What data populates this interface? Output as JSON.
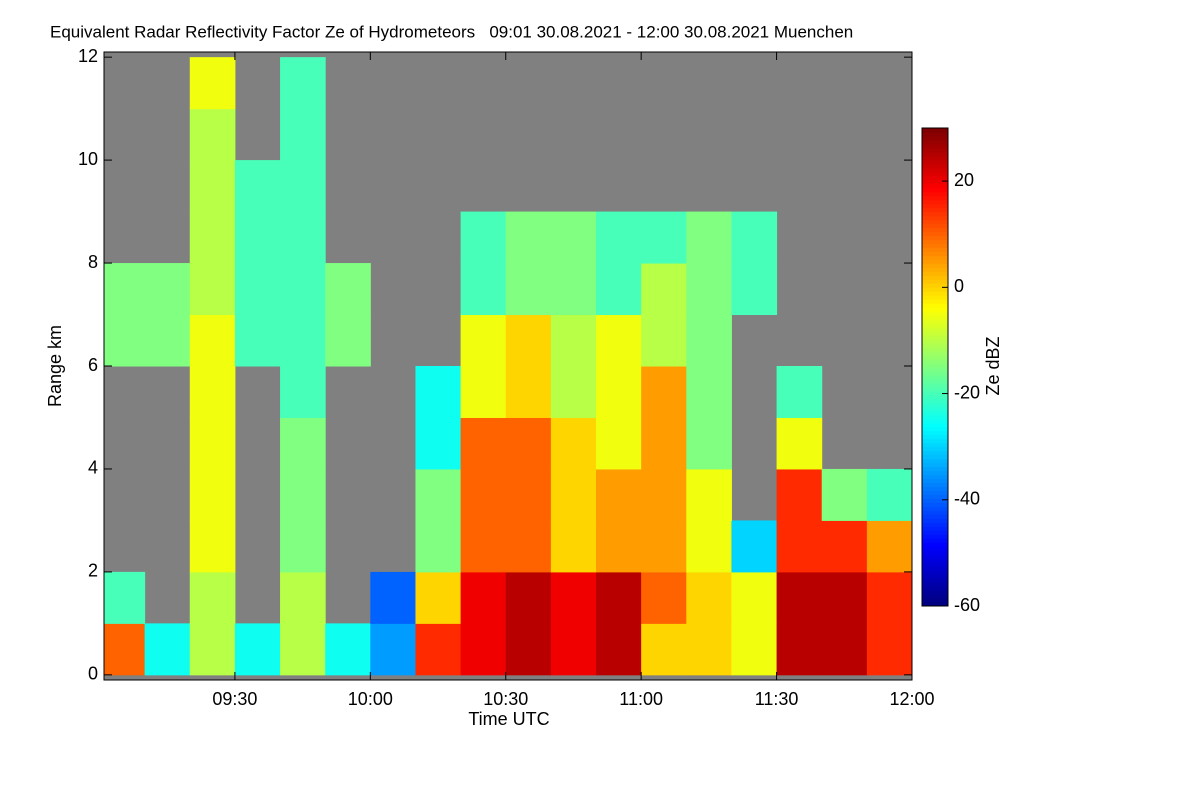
{
  "chart_data": {
    "type": "heatmap",
    "title": "Equivalent Radar Reflectivity Factor Ze of Hydrometeors   09:01 30.08.2021 - 12:00 30.08.2021 Muenchen",
    "xlabel": "Time UTC",
    "ylabel": "Range km",
    "colorbar_label": "Ze dBZ",
    "xlim": [
      "09:01",
      "12:00"
    ],
    "xticks": [
      "09:30",
      "10:00",
      "10:30",
      "11:00",
      "11:30",
      "12:00"
    ],
    "ylim": [
      -0.1,
      12.1
    ],
    "yticks": [
      0,
      2,
      4,
      6,
      8,
      10,
      12
    ],
    "zlim": [
      -60,
      30
    ],
    "zticks": [
      -60,
      -40,
      -20,
      0,
      20
    ],
    "background": "#808080",
    "colormap": "jet",
    "x_bins": [
      "09:01",
      "09:10",
      "09:20",
      "09:30",
      "09:40",
      "09:50",
      "10:00",
      "10:10",
      "10:20",
      "10:30",
      "10:40",
      "10:50",
      "11:00",
      "11:10",
      "11:20",
      "11:30",
      "11:40",
      "11:50",
      "12:00"
    ],
    "y_bins": [
      0,
      1,
      2,
      3,
      4,
      5,
      6,
      7,
      8,
      9,
      10,
      11,
      12
    ],
    "values": [
      [
        10,
        -25,
        -10,
        -25,
        -10,
        -25,
        -35,
        15,
        20,
        25,
        20,
        25,
        0,
        0,
        -5,
        25,
        25,
        15
      ],
      [
        -20,
        null,
        -10,
        null,
        -10,
        null,
        -40,
        0,
        20,
        25,
        20,
        25,
        10,
        0,
        -5,
        25,
        25,
        15
      ],
      [
        null,
        null,
        -5,
        null,
        -15,
        null,
        null,
        -15,
        10,
        10,
        0,
        5,
        5,
        -5,
        -30,
        15,
        15,
        5
      ],
      [
        null,
        null,
        -5,
        null,
        -15,
        null,
        null,
        -15,
        10,
        10,
        0,
        5,
        5,
        -5,
        null,
        15,
        -15,
        -20
      ],
      [
        null,
        null,
        -5,
        null,
        -15,
        null,
        null,
        -25,
        10,
        10,
        0,
        -5,
        5,
        -15,
        null,
        -5,
        null,
        null
      ],
      [
        null,
        null,
        -5,
        null,
        -20,
        null,
        null,
        -25,
        -5,
        0,
        -10,
        -5,
        5,
        -15,
        null,
        -20,
        null,
        null
      ],
      [
        -15,
        -15,
        -5,
        -20,
        -20,
        -15,
        null,
        null,
        -5,
        0,
        -10,
        -5,
        -10,
        -15,
        null,
        null,
        null,
        null
      ],
      [
        -15,
        -15,
        -10,
        -20,
        -20,
        -15,
        null,
        null,
        -20,
        -15,
        -15,
        -20,
        -10,
        -15,
        -20,
        null,
        null,
        null
      ],
      [
        null,
        null,
        -10,
        -20,
        -20,
        null,
        null,
        null,
        -20,
        -15,
        -15,
        -20,
        -20,
        -15,
        -20,
        null,
        null,
        null
      ],
      [
        null,
        null,
        -10,
        -20,
        -20,
        null,
        null,
        null,
        null,
        null,
        null,
        null,
        null,
        null,
        null,
        null,
        null,
        null
      ],
      [
        null,
        null,
        -10,
        null,
        -20,
        null,
        null,
        null,
        null,
        null,
        null,
        null,
        null,
        null,
        null,
        null,
        null,
        null
      ],
      [
        null,
        null,
        -5,
        null,
        -20,
        null,
        null,
        null,
        null,
        null,
        null,
        null,
        null,
        null,
        null,
        null,
        null,
        null
      ]
    ]
  }
}
